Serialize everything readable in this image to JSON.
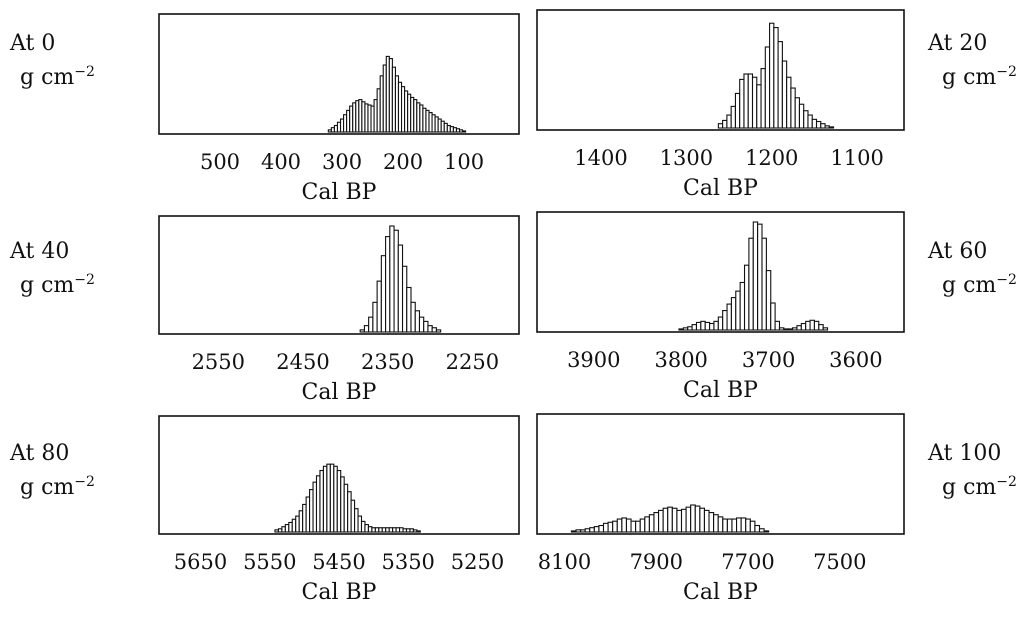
{
  "figure": {
    "xlabel": "Cal BP",
    "panels": [
      {
        "label_top": "At 0",
        "label_unit": "g cm",
        "label_exp": "−2",
        "chart_data": {
          "type": "bar",
          "xlabel": "Cal BP",
          "xlim": [
            600,
            10
          ],
          "ticks": [
            500,
            400,
            300,
            200,
            100
          ],
          "tick_labels": [
            "500",
            "400",
            "300",
            "200",
            "100"
          ],
          "x": [
            320,
            315,
            310,
            305,
            300,
            295,
            290,
            285,
            280,
            275,
            270,
            265,
            260,
            255,
            250,
            245,
            240,
            235,
            230,
            225,
            220,
            215,
            210,
            205,
            200,
            195,
            190,
            185,
            180,
            175,
            170,
            165,
            160,
            155,
            150,
            145,
            140,
            135,
            130,
            125,
            120,
            115,
            110,
            105,
            100
          ],
          "values": [
            0.02,
            0.04,
            0.06,
            0.09,
            0.12,
            0.16,
            0.2,
            0.24,
            0.27,
            0.29,
            0.3,
            0.28,
            0.26,
            0.25,
            0.24,
            0.3,
            0.4,
            0.52,
            0.62,
            0.7,
            0.68,
            0.6,
            0.52,
            0.46,
            0.42,
            0.38,
            0.35,
            0.32,
            0.3,
            0.27,
            0.25,
            0.22,
            0.2,
            0.18,
            0.16,
            0.14,
            0.12,
            0.1,
            0.08,
            0.06,
            0.05,
            0.04,
            0.03,
            0.02,
            0.01
          ]
        }
      },
      {
        "label_top": "At 20",
        "label_unit": "g cm",
        "label_exp": "−2",
        "chart_data": {
          "type": "bar",
          "xlabel": "Cal BP",
          "xlim": [
            1475,
            1045
          ],
          "ticks": [
            1400,
            1300,
            1200,
            1100
          ],
          "tick_labels": [
            "1400",
            "1300",
            "1200",
            "1100"
          ],
          "x": [
            1260,
            1255,
            1250,
            1245,
            1240,
            1235,
            1230,
            1225,
            1220,
            1215,
            1210,
            1205,
            1200,
            1195,
            1190,
            1185,
            1180,
            1175,
            1170,
            1165,
            1160,
            1155,
            1150,
            1145,
            1140,
            1135,
            1130
          ],
          "values": [
            0.04,
            0.07,
            0.12,
            0.2,
            0.32,
            0.45,
            0.5,
            0.5,
            0.47,
            0.4,
            0.55,
            0.75,
            0.97,
            0.93,
            0.8,
            0.62,
            0.47,
            0.37,
            0.28,
            0.22,
            0.16,
            0.12,
            0.08,
            0.06,
            0.04,
            0.02,
            0.01
          ]
        }
      },
      {
        "label_top": "At 40",
        "label_unit": "g cm",
        "label_exp": "−2",
        "chart_data": {
          "type": "bar",
          "xlabel": "Cal BP",
          "xlim": [
            2620,
            2195
          ],
          "ticks": [
            2550,
            2450,
            2350,
            2250
          ],
          "tick_labels": [
            "2550",
            "2450",
            "2350",
            "2250"
          ],
          "x": [
            2380,
            2375,
            2370,
            2365,
            2360,
            2355,
            2350,
            2345,
            2340,
            2335,
            2330,
            2325,
            2320,
            2315,
            2310,
            2305,
            2300,
            2295,
            2290
          ],
          "values": [
            0.02,
            0.06,
            0.14,
            0.28,
            0.48,
            0.72,
            0.9,
            1.0,
            0.96,
            0.82,
            0.62,
            0.42,
            0.28,
            0.2,
            0.14,
            0.1,
            0.06,
            0.04,
            0.02
          ]
        }
      },
      {
        "label_top": "At 60",
        "label_unit": "g cm",
        "label_exp": "−2",
        "chart_data": {
          "type": "bar",
          "xlabel": "Cal BP",
          "xlim": [
            3965,
            3545
          ],
          "ticks": [
            3900,
            3800,
            3700,
            3600
          ],
          "tick_labels": [
            "3900",
            "3800",
            "3700",
            "3600"
          ],
          "x": [
            3800,
            3795,
            3790,
            3785,
            3780,
            3775,
            3770,
            3765,
            3760,
            3755,
            3750,
            3745,
            3740,
            3735,
            3730,
            3725,
            3720,
            3715,
            3710,
            3705,
            3700,
            3695,
            3690,
            3685,
            3680,
            3675,
            3670,
            3665,
            3660,
            3655,
            3650,
            3645,
            3640,
            3635
          ],
          "values": [
            0.01,
            0.02,
            0.03,
            0.05,
            0.07,
            0.08,
            0.07,
            0.06,
            0.08,
            0.12,
            0.18,
            0.24,
            0.3,
            0.36,
            0.44,
            0.6,
            0.85,
            1.0,
            0.98,
            0.85,
            0.55,
            0.25,
            0.08,
            0.02,
            0.01,
            0.01,
            0.02,
            0.04,
            0.06,
            0.08,
            0.09,
            0.08,
            0.05,
            0.02
          ]
        }
      },
      {
        "label_top": "At 80",
        "label_unit": "g cm",
        "label_exp": "−2",
        "chart_data": {
          "type": "bar",
          "xlabel": "Cal BP",
          "xlim": [
            5710,
            5190
          ],
          "ticks": [
            5650,
            5550,
            5450,
            5350,
            5250
          ],
          "tick_labels": [
            "5650",
            "5550",
            "5450",
            "5350",
            "5250"
          ],
          "x": [
            5540,
            5535,
            5530,
            5525,
            5520,
            5515,
            5510,
            5505,
            5500,
            5495,
            5490,
            5485,
            5480,
            5475,
            5470,
            5465,
            5460,
            5455,
            5450,
            5445,
            5440,
            5435,
            5430,
            5425,
            5420,
            5415,
            5410,
            5405,
            5400,
            5395,
            5390,
            5385,
            5380,
            5375,
            5370,
            5365,
            5360,
            5355,
            5350,
            5345,
            5340,
            5335
          ],
          "values": [
            0.02,
            0.03,
            0.05,
            0.07,
            0.09,
            0.12,
            0.15,
            0.2,
            0.26,
            0.33,
            0.4,
            0.47,
            0.53,
            0.58,
            0.62,
            0.64,
            0.64,
            0.62,
            0.58,
            0.52,
            0.45,
            0.38,
            0.3,
            0.22,
            0.15,
            0.1,
            0.07,
            0.05,
            0.04,
            0.04,
            0.04,
            0.04,
            0.04,
            0.04,
            0.04,
            0.04,
            0.04,
            0.03,
            0.03,
            0.03,
            0.02,
            0.01
          ]
        }
      },
      {
        "label_top": "At 100",
        "label_unit": "g cm",
        "label_exp": "−2",
        "chart_data": {
          "type": "bar",
          "xlabel": "Cal BP",
          "xlim": [
            8160,
            7360
          ],
          "ticks": [
            8100,
            7900,
            7700,
            7500
          ],
          "tick_labels": [
            "8100",
            "7900",
            "7700",
            "7500"
          ],
          "x": [
            8080,
            8070,
            8060,
            8050,
            8040,
            8030,
            8020,
            8010,
            8000,
            7990,
            7980,
            7970,
            7960,
            7950,
            7940,
            7930,
            7920,
            7910,
            7900,
            7890,
            7880,
            7870,
            7860,
            7850,
            7840,
            7830,
            7820,
            7810,
            7800,
            7790,
            7780,
            7770,
            7760,
            7750,
            7740,
            7730,
            7720,
            7710,
            7700,
            7690,
            7680,
            7670,
            7660
          ],
          "values": [
            0.01,
            0.02,
            0.02,
            0.03,
            0.04,
            0.05,
            0.06,
            0.08,
            0.09,
            0.1,
            0.12,
            0.13,
            0.12,
            0.1,
            0.1,
            0.12,
            0.14,
            0.16,
            0.18,
            0.2,
            0.22,
            0.23,
            0.22,
            0.2,
            0.21,
            0.23,
            0.25,
            0.24,
            0.22,
            0.2,
            0.18,
            0.16,
            0.14,
            0.12,
            0.12,
            0.12,
            0.13,
            0.13,
            0.12,
            0.1,
            0.06,
            0.03,
            0.01
          ]
        }
      }
    ]
  }
}
